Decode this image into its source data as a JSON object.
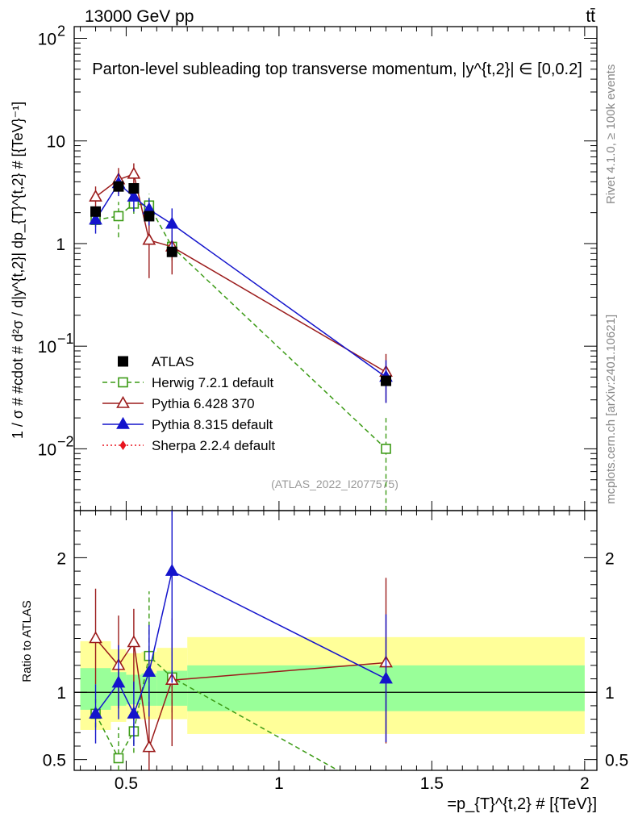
{
  "header": {
    "left": "13000 GeV pp",
    "right": "tt̄",
    "title": "Parton-level subleading top transverse momentum, |y^{t,2}| ∈ [0,0.2]"
  },
  "side_labels": {
    "rivet": "Rivet 4.1.0, ≥ 100k events",
    "mcplots": "mcplots.cern.ch [arXiv:2401.10621]"
  },
  "watermark": "(ATLAS_2022_I2077575)",
  "chart_data": {
    "type": "line",
    "xlabel": "=p_{T}^{t,2} # [{TeV}]",
    "ylabel_main": "1 / σ # #cdot # d²σ / d|y^{t,2}| dp_{T}^{t,2} # [{TeV}⁻¹]",
    "ylabel_ratio": "Ratio to ATLAS",
    "xlim": [
      0.33,
      2.04
    ],
    "ylim_main": [
      0.0025,
      130
    ],
    "ylim_ratio": [
      0.42,
      2.35
    ],
    "x_ticks": [
      {
        "value": 0.5,
        "label": "0.5"
      },
      {
        "value": 1.0,
        "label": "1"
      },
      {
        "value": 1.5,
        "label": "1.5"
      },
      {
        "value": 2.0,
        "label": "2"
      }
    ],
    "y_ticks_main": [
      {
        "value": 0.01,
        "base": "10",
        "exp": "−2"
      },
      {
        "value": 0.1,
        "base": "10",
        "exp": "−1"
      },
      {
        "value": 1,
        "base": "1",
        "exp": ""
      },
      {
        "value": 10,
        "base": "10",
        "exp": ""
      },
      {
        "value": 100,
        "base": "10",
        "exp": "2"
      }
    ],
    "y_ticks_ratio": [
      {
        "value": 0.5,
        "label": "0.5"
      },
      {
        "value": 1,
        "label": "1"
      },
      {
        "value": 2,
        "label": "2"
      }
    ],
    "bands": [
      {
        "x0": 0.35,
        "x1": 0.45,
        "in_lo": 0.87,
        "in_hi": 1.18,
        "out_lo": 0.72,
        "out_hi": 1.38
      },
      {
        "x0": 0.45,
        "x1": 0.5,
        "in_lo": 0.9,
        "in_hi": 1.15,
        "out_lo": 0.78,
        "out_hi": 1.32
      },
      {
        "x0": 0.5,
        "x1": 0.55,
        "in_lo": 0.91,
        "in_hi": 1.13,
        "out_lo": 0.8,
        "out_hi": 1.29
      },
      {
        "x0": 0.55,
        "x1": 0.6,
        "in_lo": 0.9,
        "in_hi": 1.14,
        "out_lo": 0.8,
        "out_hi": 1.3
      },
      {
        "x0": 0.6,
        "x1": 0.7,
        "in_lo": 0.9,
        "in_hi": 1.16,
        "out_lo": 0.8,
        "out_hi": 1.33
      },
      {
        "x0": 0.7,
        "x1": 2.0,
        "in_lo": 0.86,
        "in_hi": 1.2,
        "out_lo": 0.69,
        "out_hi": 1.41
      }
    ],
    "series": [
      {
        "name": "ATLAS",
        "color": "#000000",
        "marker": "square-filled",
        "line": "none",
        "x": [
          0.4,
          0.475,
          0.525,
          0.575,
          0.65,
          1.35
        ],
        "y": [
          2.05,
          3.6,
          3.45,
          1.85,
          0.83,
          0.046
        ],
        "xerr": [
          0.05,
          0.025,
          0.025,
          0.025,
          0.05,
          0.65
        ]
      },
      {
        "name": "Herwig 7.2.1 default",
        "color": "#3c9b16",
        "marker": "square-open",
        "line": "dashed",
        "x": [
          0.4,
          0.475,
          0.525,
          0.575,
          0.65,
          1.35
        ],
        "y": [
          1.7,
          1.85,
          2.45,
          2.35,
          0.93,
          0.01
        ],
        "y_lo": [
          1.45,
          1.15,
          1.95,
          1.75,
          0.68,
          0.001
        ],
        "y_hi": [
          1.95,
          2.55,
          2.95,
          3.05,
          1.2,
          0.02
        ],
        "ratio": [
          0.84,
          0.51,
          0.71,
          1.27,
          1.11,
          0.22
        ],
        "ratio_lo": [
          0.74,
          0.3,
          0.55,
          0.95,
          0.85,
          0.1
        ],
        "ratio_hi": [
          0.95,
          0.74,
          0.87,
          1.75,
          1.4,
          0.35
        ]
      },
      {
        "name": "Pythia 6.428 370",
        "color": "#9b1b1b",
        "marker": "triangle-open",
        "line": "solid",
        "x": [
          0.4,
          0.475,
          0.525,
          0.575,
          0.65,
          1.35
        ],
        "y": [
          2.85,
          4.2,
          4.75,
          1.08,
          0.93,
          0.056
        ],
        "y_lo": [
          2.15,
          3.05,
          3.5,
          0.46,
          0.5,
          0.028
        ],
        "y_hi": [
          3.6,
          5.45,
          6.05,
          1.75,
          1.35,
          0.084
        ],
        "ratio": [
          1.4,
          1.2,
          1.37,
          0.59,
          1.09,
          1.22
        ],
        "ratio_lo": [
          1.06,
          0.88,
          1.02,
          0.25,
          0.6,
          0.62
        ],
        "ratio_hi": [
          1.77,
          1.57,
          1.62,
          0.93,
          1.55,
          1.85
        ]
      },
      {
        "name": "Pythia 8.315 default",
        "color": "#1414cc",
        "marker": "triangle-filled",
        "line": "solid",
        "x": [
          0.4,
          0.475,
          0.525,
          0.575,
          0.65,
          1.35
        ],
        "y": [
          1.7,
          3.85,
          2.85,
          2.15,
          1.55,
          0.05
        ],
        "y_lo": [
          1.25,
          2.9,
          2.05,
          1.5,
          0.9,
          0.028
        ],
        "y_hi": [
          2.15,
          4.8,
          3.65,
          2.75,
          2.2,
          0.073
        ],
        "ratio": [
          0.84,
          1.07,
          0.84,
          1.15,
          1.9,
          1.1
        ],
        "ratio_lo": [
          0.62,
          0.8,
          0.6,
          0.82,
          1.07,
          0.63
        ],
        "ratio_hi": [
          1.06,
          1.35,
          1.08,
          1.5,
          2.4,
          1.58
        ]
      },
      {
        "name": "Sherpa 2.2.4 default",
        "color": "#e8141e",
        "marker": "diamond-filled",
        "line": "dotted",
        "x": [],
        "y": []
      }
    ]
  }
}
